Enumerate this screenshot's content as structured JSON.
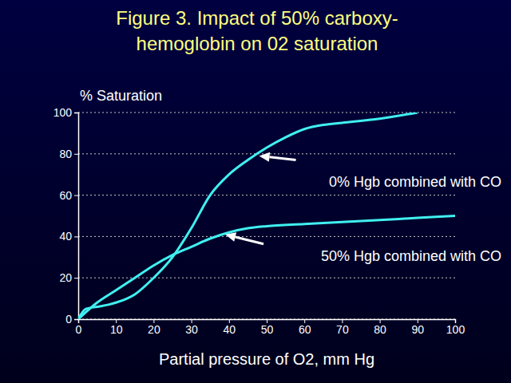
{
  "chart_data": {
    "type": "line",
    "title": [
      "Figure 3. Impact of 50% carboxy-",
      "hemoglobin on 02 saturation"
    ],
    "y_label": "% Saturation",
    "x_label": "Partial pressure of O2, mm Hg",
    "xlim": [
      0,
      100
    ],
    "xticks": [
      0,
      10,
      20,
      30,
      40,
      50,
      60,
      70,
      80,
      90,
      100
    ],
    "ylim": [
      0,
      100
    ],
    "yticks": [
      0,
      20,
      40,
      60,
      80,
      100
    ],
    "grid": true,
    "color": "#40f0f0",
    "series": [
      {
        "color": "#40f0f0",
        "x": [
          0,
          2,
          5,
          8,
          10,
          15,
          20,
          25,
          30,
          35,
          40,
          45,
          50,
          55,
          60,
          65,
          70,
          80,
          90
        ],
        "values": [
          0,
          5,
          6,
          7,
          8,
          12,
          20,
          30,
          44,
          60,
          70,
          77,
          83,
          88,
          92,
          94,
          95,
          97,
          100
        ]
      },
      {
        "color": "#40f0f0",
        "x": [
          0,
          5,
          10,
          15,
          20,
          25,
          30,
          35,
          40,
          45,
          50,
          60,
          70,
          80,
          90,
          100
        ],
        "values": [
          0,
          8,
          14,
          20,
          26,
          31,
          35,
          39,
          42,
          44,
          45,
          46,
          47,
          48,
          49,
          50
        ]
      }
    ],
    "annotations": [
      {
        "text": "0% Hgb combined with CO",
        "x": 48,
        "y": 79
      },
      {
        "text": "50% Hgb combined with CO",
        "x": 39,
        "y": 41
      }
    ]
  }
}
